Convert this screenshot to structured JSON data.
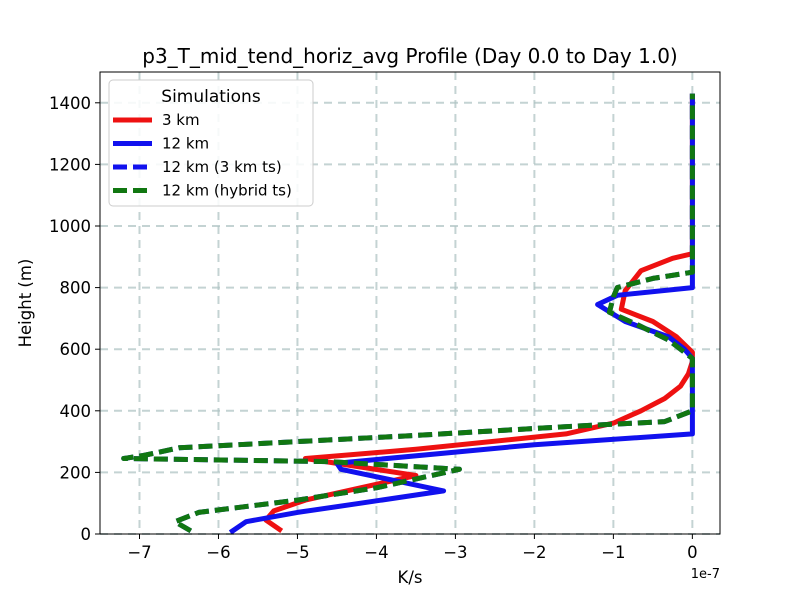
{
  "chart_data": {
    "type": "line",
    "title": "p3_T_mid_tend_horiz_avg Profile (Day 0.0 to Day 1.0)",
    "xlabel": "K/s",
    "ylabel": "Height (m)",
    "x_offset_text": "1e-7",
    "xlim": [
      -7.5,
      0.35
    ],
    "ylim": [
      0,
      1500
    ],
    "xticks": [
      -7,
      -6,
      -5,
      -4,
      -3,
      -2,
      -1,
      0
    ],
    "xtick_labels": [
      "−7",
      "−6",
      "−5",
      "−4",
      "−3",
      "−2",
      "−1",
      "0"
    ],
    "yticks": [
      0,
      200,
      400,
      600,
      800,
      1000,
      1200,
      1400
    ],
    "ytick_labels": [
      "0",
      "200",
      "400",
      "600",
      "800",
      "1000",
      "1200",
      "1400"
    ],
    "grid": true,
    "legend": {
      "title": "Simulations",
      "placement": "top-left"
    },
    "series": [
      {
        "name": "3 km",
        "color": "#ee1111",
        "dashed": false,
        "points": [
          [
            -5.2,
            10
          ],
          [
            -5.4,
            45
          ],
          [
            -5.3,
            75
          ],
          [
            -4.9,
            110
          ],
          [
            -4.2,
            150
          ],
          [
            -3.5,
            190
          ],
          [
            -4.9,
            245
          ],
          [
            -3.5,
            275
          ],
          [
            -1.6,
            325
          ],
          [
            -1.0,
            360
          ],
          [
            -0.65,
            400
          ],
          [
            -0.35,
            440
          ],
          [
            -0.15,
            480
          ],
          [
            -0.05,
            520
          ],
          [
            0.0,
            560
          ],
          [
            0.0,
            590
          ],
          [
            -0.2,
            640
          ],
          [
            -0.5,
            690
          ],
          [
            -0.9,
            730
          ],
          [
            -0.85,
            790
          ],
          [
            -0.65,
            855
          ],
          [
            -0.25,
            895
          ],
          [
            0.0,
            910
          ],
          [
            0.0,
            1430
          ]
        ]
      },
      {
        "name": "12 km",
        "color": "#1111ee",
        "dashed": false,
        "points": [
          [
            -5.85,
            5
          ],
          [
            -5.65,
            40
          ],
          [
            -5.0,
            70
          ],
          [
            -4.2,
            100
          ],
          [
            -3.15,
            140
          ],
          [
            -4.45,
            210
          ],
          [
            -4.5,
            230
          ],
          [
            -2.0,
            290
          ],
          [
            0.0,
            325
          ],
          [
            0.0,
            570
          ],
          [
            -0.1,
            600
          ],
          [
            -0.3,
            640
          ],
          [
            -0.85,
            690
          ],
          [
            -1.2,
            745
          ],
          [
            -0.95,
            775
          ],
          [
            0.0,
            800
          ],
          [
            0.0,
            1430
          ]
        ]
      },
      {
        "name": "12 km (3 km ts)",
        "color": "#1111ee",
        "dashed": true,
        "points": [
          [
            -6.35,
            10
          ],
          [
            -6.55,
            40
          ],
          [
            -6.25,
            70
          ],
          [
            -5.0,
            110
          ],
          [
            -4.0,
            150
          ],
          [
            -2.95,
            210
          ],
          [
            -4.6,
            235
          ],
          [
            -7.2,
            245
          ],
          [
            -6.95,
            255
          ],
          [
            -6.5,
            280
          ],
          [
            -3.5,
            320
          ],
          [
            -1.5,
            350
          ],
          [
            -0.35,
            365
          ],
          [
            0.0,
            400
          ],
          [
            0.0,
            570
          ],
          [
            -0.3,
            630
          ],
          [
            -0.7,
            680
          ],
          [
            -1.05,
            720
          ],
          [
            -1.0,
            770
          ],
          [
            -0.95,
            800
          ],
          [
            -0.5,
            830
          ],
          [
            0.0,
            850
          ],
          [
            0.0,
            1430
          ]
        ]
      },
      {
        "name": "12 km (hybrid ts)",
        "color": "#117711",
        "dashed": true,
        "points": [
          [
            -6.35,
            10
          ],
          [
            -6.55,
            40
          ],
          [
            -6.25,
            70
          ],
          [
            -5.0,
            110
          ],
          [
            -4.0,
            150
          ],
          [
            -2.95,
            210
          ],
          [
            -4.6,
            235
          ],
          [
            -7.2,
            245
          ],
          [
            -6.95,
            255
          ],
          [
            -6.5,
            280
          ],
          [
            -3.5,
            320
          ],
          [
            -1.5,
            350
          ],
          [
            -0.35,
            365
          ],
          [
            0.0,
            400
          ],
          [
            0.0,
            570
          ],
          [
            -0.3,
            630
          ],
          [
            -0.7,
            680
          ],
          [
            -1.05,
            720
          ],
          [
            -1.0,
            770
          ],
          [
            -0.95,
            800
          ],
          [
            -0.5,
            830
          ],
          [
            0.0,
            850
          ],
          [
            0.0,
            1430
          ]
        ]
      }
    ]
  }
}
